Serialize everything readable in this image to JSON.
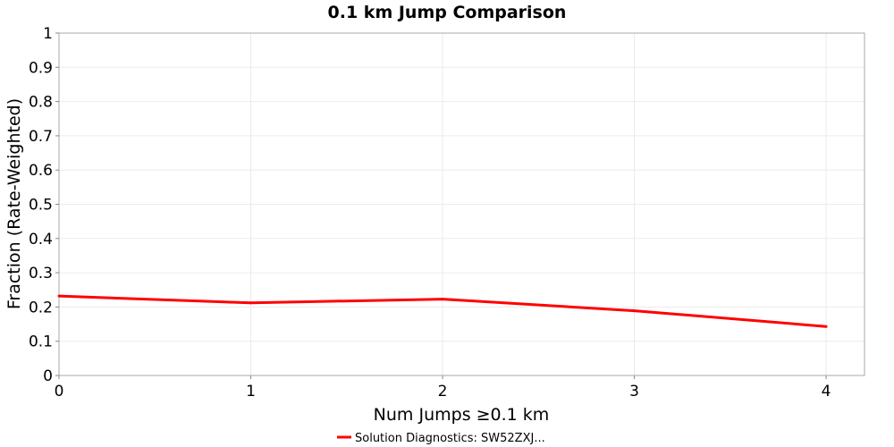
{
  "chart_data": {
    "type": "line",
    "title": "0.1 km Jump Comparison",
    "xlabel": "Num Jumps ≥0.1 km",
    "ylabel": "Fraction (Rate-Weighted)",
    "xlim": [
      0,
      4.2
    ],
    "ylim": [
      0,
      1
    ],
    "x_ticks": [
      "0",
      "1",
      "2",
      "3",
      "4"
    ],
    "y_ticks": [
      "0",
      "0.1",
      "0.2",
      "0.3",
      "0.4",
      "0.5",
      "0.6",
      "0.7",
      "0.8",
      "0.9",
      "1"
    ],
    "grid": true,
    "legend_position": "bottom-center",
    "series": [
      {
        "name": "Solution Diagnostics: SW52ZXJ...",
        "color": "#ff0000",
        "x": [
          0,
          1,
          2,
          3,
          4
        ],
        "y": [
          0.232,
          0.212,
          0.223,
          0.189,
          0.143
        ]
      }
    ]
  }
}
